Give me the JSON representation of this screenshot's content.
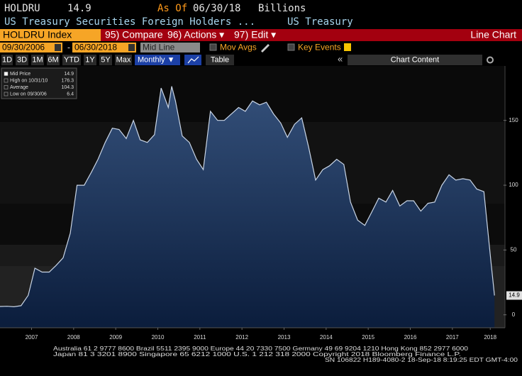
{
  "header": {
    "ticker": "HOLDRU",
    "last": "14.9",
    "as_of_label": "As Of",
    "as_of": "06/30/18",
    "units": "Billions",
    "description": "US Treasury Securities Foreign Holders ...",
    "source": "US Treasury"
  },
  "toolbar": {
    "security": "HOLDRU Index",
    "buttons": [
      "95) Compare",
      "96) Actions ▾",
      "97) Edit ▾"
    ],
    "chart_kind": "Line Chart",
    "start_date": "09/30/2006",
    "date_sep": "-",
    "end_date": "06/30/2018",
    "line_mode": "Mid Line",
    "mov_avgs": "Mov Avgs",
    "key_events": "Key Events",
    "periods": [
      "1D",
      "3D",
      "1M",
      "6M",
      "YTD",
      "1Y",
      "5Y",
      "Max"
    ],
    "frequency": "Monthly ▼",
    "table": "Table",
    "collapse": "«",
    "chart_content": "Chart Content"
  },
  "chart_data": {
    "type": "area",
    "x": [
      2006.75,
      2006.92,
      2007.08,
      2007.25,
      2007.42,
      2007.58,
      2007.75,
      2007.92,
      2008.08,
      2008.25,
      2008.42,
      2008.58,
      2008.75,
      2008.92,
      2009.08,
      2009.25,
      2009.42,
      2009.58,
      2009.75,
      2009.92,
      2010.08,
      2010.25,
      2010.42,
      2010.58,
      2010.75,
      2010.83,
      2010.92,
      2011.08,
      2011.25,
      2011.42,
      2011.58,
      2011.75,
      2011.92,
      2012.08,
      2012.25,
      2012.42,
      2012.58,
      2012.75,
      2012.92,
      2013.08,
      2013.25,
      2013.42,
      2013.58,
      2013.75,
      2013.92,
      2014.08,
      2014.25,
      2014.42,
      2014.58,
      2014.75,
      2014.92,
      2015.08,
      2015.25,
      2015.42,
      2015.58,
      2015.75,
      2015.92,
      2016.08,
      2016.25,
      2016.42,
      2016.58,
      2016.75,
      2016.92,
      2017.08,
      2017.25,
      2017.42,
      2017.58,
      2017.75,
      2017.92,
      2018.08,
      2018.25,
      2018.42,
      2018.5
    ],
    "series": [
      {
        "name": "Mid Price",
        "color": "#c9d5e6",
        "values": [
          6.4,
          6.6,
          6.2,
          7,
          15,
          36,
          33,
          33,
          38,
          44,
          63,
          100,
          100,
          110,
          120,
          133,
          144,
          143,
          136,
          150,
          135,
          133,
          139,
          175,
          160,
          176.3,
          165,
          138,
          133,
          120,
          112,
          157,
          150,
          150,
          155,
          160,
          157,
          165,
          162,
          164,
          155,
          148,
          137,
          147,
          152,
          130,
          104,
          112,
          115,
          120,
          116,
          87,
          73,
          69,
          79,
          90,
          87,
          96,
          84,
          88,
          88,
          80,
          86,
          87,
          100,
          108,
          104,
          105,
          104,
          97,
          95,
          40,
          14.9
        ]
      }
    ],
    "xlim": [
      2006.75,
      2018.75
    ],
    "ylim": [
      -10,
      192
    ],
    "xticks": [
      {
        "value": 2007.5,
        "label": "2007"
      },
      {
        "value": 2008.5,
        "label": "2008"
      },
      {
        "value": 2009.5,
        "label": "2009"
      },
      {
        "value": 2010.5,
        "label": "2010"
      },
      {
        "value": 2011.5,
        "label": "2011"
      },
      {
        "value": 2012.5,
        "label": "2012"
      },
      {
        "value": 2013.5,
        "label": "2013"
      },
      {
        "value": 2014.5,
        "label": "2014"
      },
      {
        "value": 2015.5,
        "label": "2015"
      },
      {
        "value": 2016.5,
        "label": "2016"
      },
      {
        "value": 2017.5,
        "label": "2017"
      },
      {
        "value": 2018.4,
        "label": "2018"
      }
    ],
    "yticks": [
      0,
      50,
      100,
      150
    ],
    "y_axis_side": "right",
    "grid": false,
    "stats": [
      {
        "label": "Mid Price",
        "value": 14.9
      },
      {
        "label": "High on 10/31/10",
        "value": 176.3
      },
      {
        "label": "Average",
        "value": 104.3
      },
      {
        "label": "Low on 09/30/06",
        "value": 6.4
      }
    ]
  },
  "footer": {
    "lines": [
      "Australia 61 2 9777 8600 Brazil 5511 2395 9000 Europe 44 20 7330 7500 Germany 49 69 9204 1210 Hong Kong 852 2977 6000",
      "Japan 81 3 3201 8900      Singapore 65 6212 1000      U.S. 1 212 318 2000      Copyright 2018 Bloomberg Finance L.P.",
      "SN 106822 H189-4080-2 18-Sep-18  8:19:25 EDT  GMT-4:00"
    ]
  }
}
